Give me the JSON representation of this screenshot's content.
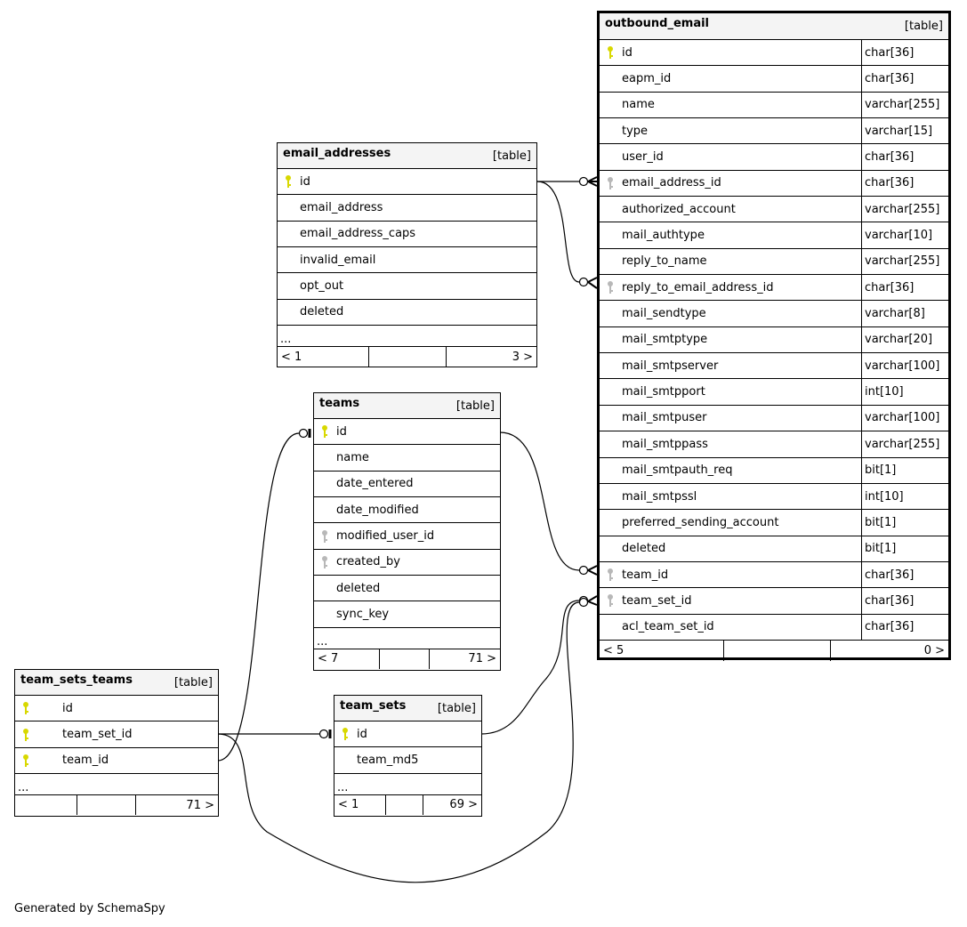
{
  "tables": [
    {
      "name": "outbound_email",
      "tag": "[table]",
      "focus": true,
      "columns": [
        {
          "name": "id",
          "type": "char[36]",
          "key": "primary"
        },
        {
          "name": "eapm_id",
          "type": "char[36]"
        },
        {
          "name": "name",
          "type": "varchar[255]"
        },
        {
          "name": "type",
          "type": "varchar[15]"
        },
        {
          "name": "user_id",
          "type": "char[36]"
        },
        {
          "name": "email_address_id",
          "type": "char[36]",
          "key": "foreign"
        },
        {
          "name": "authorized_account",
          "type": "varchar[255]"
        },
        {
          "name": "mail_authtype",
          "type": "varchar[10]"
        },
        {
          "name": "reply_to_name",
          "type": "varchar[255]"
        },
        {
          "name": "reply_to_email_address_id",
          "type": "char[36]",
          "key": "foreign"
        },
        {
          "name": "mail_sendtype",
          "type": "varchar[8]"
        },
        {
          "name": "mail_smtptype",
          "type": "varchar[20]"
        },
        {
          "name": "mail_smtpserver",
          "type": "varchar[100]"
        },
        {
          "name": "mail_smtpport",
          "type": "int[10]"
        },
        {
          "name": "mail_smtpuser",
          "type": "varchar[100]"
        },
        {
          "name": "mail_smtppass",
          "type": "varchar[255]"
        },
        {
          "name": "mail_smtpauth_req",
          "type": "bit[1]"
        },
        {
          "name": "mail_smtpssl",
          "type": "int[10]"
        },
        {
          "name": "preferred_sending_account",
          "type": "bit[1]"
        },
        {
          "name": "deleted",
          "type": "bit[1]"
        },
        {
          "name": "team_id",
          "type": "char[36]",
          "key": "foreign"
        },
        {
          "name": "team_set_id",
          "type": "char[36]",
          "key": "foreign"
        },
        {
          "name": "acl_team_set_id",
          "type": "char[36]"
        }
      ],
      "ellipsis": null,
      "footer": [
        "< 5",
        "",
        "0 >"
      ]
    },
    {
      "name": "email_addresses",
      "tag": "[table]",
      "columns": [
        {
          "name": "id",
          "key": "primary"
        },
        {
          "name": "email_address"
        },
        {
          "name": "email_address_caps"
        },
        {
          "name": "invalid_email"
        },
        {
          "name": "opt_out"
        },
        {
          "name": "deleted"
        }
      ],
      "ellipsis": "...",
      "footer": [
        "< 1",
        "",
        "3 >"
      ]
    },
    {
      "name": "teams",
      "tag": "[table]",
      "columns": [
        {
          "name": "id",
          "key": "primary"
        },
        {
          "name": "name"
        },
        {
          "name": "date_entered"
        },
        {
          "name": "date_modified"
        },
        {
          "name": "modified_user_id",
          "key": "foreign"
        },
        {
          "name": "created_by",
          "key": "foreign"
        },
        {
          "name": "deleted"
        },
        {
          "name": "sync_key"
        }
      ],
      "ellipsis": "...",
      "footer": [
        "< 7",
        "",
        "71 >"
      ]
    },
    {
      "name": "team_sets_teams",
      "tag": "[table]",
      "columns": [
        {
          "name": "id",
          "key": "primary"
        },
        {
          "name": "team_set_id",
          "key": "primary"
        },
        {
          "name": "team_id",
          "key": "primary"
        }
      ],
      "ellipsis": "...",
      "footer": [
        "",
        "",
        "71 >"
      ]
    },
    {
      "name": "team_sets",
      "tag": "[table]",
      "columns": [
        {
          "name": "id",
          "key": "primary"
        },
        {
          "name": "team_md5"
        }
      ],
      "ellipsis": "...",
      "footer": [
        "< 1",
        "",
        "69 >"
      ]
    }
  ],
  "colors": {
    "primary_key": "#d8d800",
    "foreign_key": "#b8b8b8",
    "header_bg": "#f4f4f4"
  },
  "footer_note": "Generated by SchemaSpy"
}
